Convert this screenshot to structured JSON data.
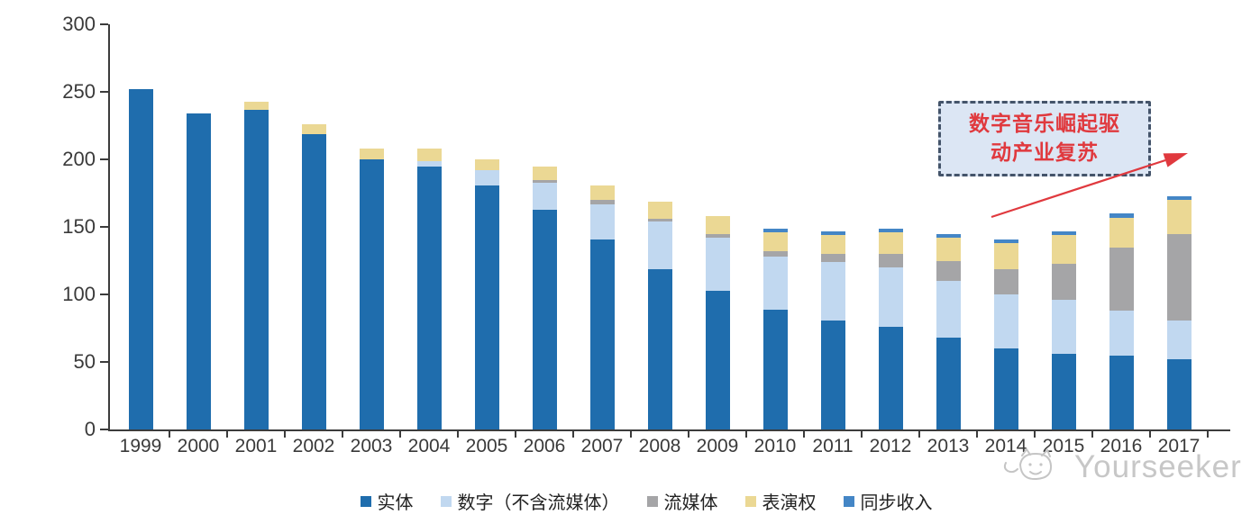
{
  "chart_data": {
    "type": "bar",
    "stacked": true,
    "title": "",
    "xlabel": "",
    "ylabel": "",
    "categories": [
      "1999",
      "2000",
      "2001",
      "2002",
      "2003",
      "2004",
      "2005",
      "2006",
      "2007",
      "2008",
      "2009",
      "2010",
      "2011",
      "2012",
      "2013",
      "2014",
      "2015",
      "2016",
      "2017"
    ],
    "series": [
      {
        "name": "实体",
        "color": "#1F6DAD",
        "values": [
          252,
          234,
          237,
          219,
          200,
          195,
          181,
          163,
          141,
          119,
          103,
          89,
          81,
          76,
          68,
          60,
          56,
          55,
          52
        ]
      },
      {
        "name": "数字（不含流媒体）",
        "color": "#C1D8F0",
        "values": [
          0,
          0,
          0,
          0,
          0,
          4,
          11,
          20,
          26,
          35,
          39,
          39,
          43,
          44,
          42,
          40,
          40,
          33,
          29
        ]
      },
      {
        "name": "流媒体",
        "color": "#A5A5A7",
        "values": [
          0,
          0,
          0,
          0,
          0,
          0,
          0,
          2,
          3,
          2,
          3,
          4,
          6,
          10,
          15,
          19,
          27,
          47,
          64
        ]
      },
      {
        "name": "表演权",
        "color": "#EBD894",
        "values": [
          0,
          0,
          6,
          7,
          8,
          9,
          8,
          10,
          11,
          13,
          13,
          14,
          14,
          16,
          17,
          19,
          21,
          22,
          25
        ]
      },
      {
        "name": "同步收入",
        "color": "#4486C6",
        "values": [
          0,
          0,
          0,
          0,
          0,
          0,
          0,
          0,
          0,
          0,
          0,
          3,
          3,
          3,
          3,
          3,
          3,
          3,
          3
        ]
      }
    ],
    "totals": [
      252,
      234,
      243,
      226,
      208,
      208,
      200,
      195,
      181,
      169,
      158,
      149,
      147,
      149,
      145,
      141,
      147,
      160,
      173
    ],
    "ylim": [
      0,
      300
    ],
    "ytick_step": 50,
    "ytick_labels": [
      "0",
      "50",
      "100",
      "150",
      "200",
      "250",
      "300"
    ],
    "grid": false,
    "legend_position": "bottom"
  },
  "annotation": {
    "line1": "数字音乐崛起驱",
    "line2": "动产业复苏",
    "text_color": "#E0393E",
    "border_color": "#44546A",
    "fill_color": "#DCE6F4",
    "arrow_color": "#E0393E"
  },
  "axis_color": "#3c3c3c",
  "watermark": {
    "label": "Yourseeker",
    "icon": "cat-face-icon",
    "color": "#c7c7c7"
  }
}
